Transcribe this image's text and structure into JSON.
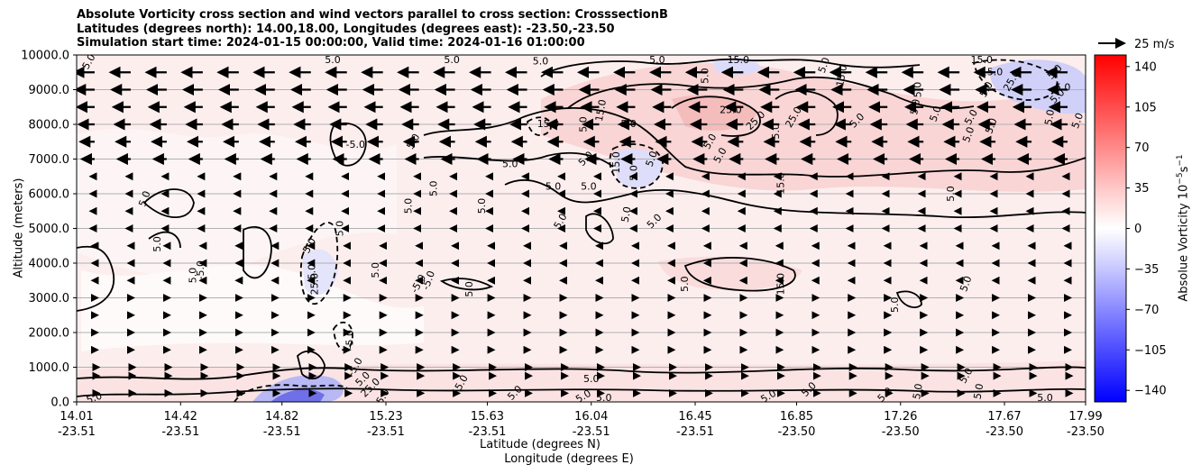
{
  "title": {
    "line1": "Absolute Vorticity cross section and wind vectors parallel to cross section: CrosssectionB",
    "line2": "Latitudes (degrees north): 14.00,18.00, Longitudes (degrees east): -23.50,-23.50",
    "line3": "Simulation start time: 2024-01-15 00:00:00, Valid time: 2024-01-16 01:00:00"
  },
  "quiver_key_label": "25 m/s",
  "colors": {
    "background_pink": "#fdeeee",
    "pink_medium": "#f9d5d5",
    "blue_light": "#e4e4fb",
    "blue_medium": "#b8b8f4",
    "gridline": "#b0b0b0"
  },
  "chart_data": {
    "type": "contour",
    "ylabel": "Altitude (meters)",
    "xlabel_line1": "Latitude (degrees N)",
    "xlabel_line2": "Longitude (degrees E)",
    "ylim": [
      0,
      10000
    ],
    "yticks": [
      "0.0",
      "1000.0",
      "2000.0",
      "3000.0",
      "4000.0",
      "5000.0",
      "6000.0",
      "7000.0",
      "8000.0",
      "9000.0",
      "10000.0"
    ],
    "xlim": [
      14.01,
      17.99
    ],
    "xticks": [
      {
        "lat": 14.01,
        "lat_label": "14.01",
        "lon_label": "-23.51"
      },
      {
        "lat": 14.42,
        "lat_label": "14.42",
        "lon_label": "-23.51"
      },
      {
        "lat": 14.82,
        "lat_label": "14.82",
        "lon_label": "-23.51"
      },
      {
        "lat": 15.23,
        "lat_label": "15.23",
        "lon_label": "-23.51"
      },
      {
        "lat": 15.63,
        "lat_label": "15.63",
        "lon_label": "-23.51"
      },
      {
        "lat": 16.04,
        "lat_label": "16.04",
        "lon_label": "-23.51"
      },
      {
        "lat": 16.45,
        "lat_label": "16.45",
        "lon_label": "-23.51"
      },
      {
        "lat": 16.85,
        "lat_label": "16.85",
        "lon_label": "-23.50"
      },
      {
        "lat": 17.26,
        "lat_label": "17.26",
        "lon_label": "-23.50"
      },
      {
        "lat": 17.67,
        "lat_label": "17.67",
        "lon_label": "-23.50"
      },
      {
        "lat": 17.99,
        "lat_label": "17.99",
        "lon_label": "-23.50"
      }
    ],
    "grid": "horizontal",
    "colorbar": {
      "label": "Absolue Vorticity 10^-5 s^-1",
      "range": [
        -150,
        150
      ],
      "ticks": [
        "140",
        "105",
        "70",
        "35",
        "0",
        "−35",
        "−70",
        "−105",
        "−140"
      ],
      "colormap": "bwr"
    },
    "quiver_key": {
      "speed": 25,
      "units": "m/s"
    },
    "wind_levels_m": [
      250,
      750,
      1000,
      1500,
      2000,
      2500,
      3000,
      3500,
      4000,
      4500,
      5000,
      5500,
      6000,
      6500,
      7000,
      7500,
      8000,
      8500,
      9000,
      9500
    ],
    "contour_labels": [
      {
        "lat": 14.06,
        "alt": 9800,
        "text": "5.0",
        "rot": -60
      },
      {
        "lat": 15.02,
        "alt": 9850,
        "text": "5.0",
        "rot": 0
      },
      {
        "lat": 15.49,
        "alt": 9850,
        "text": "5.0",
        "rot": 0
      },
      {
        "lat": 15.84,
        "alt": 9800,
        "text": "5.0",
        "rot": 0
      },
      {
        "lat": 16.3,
        "alt": 9850,
        "text": "5.0",
        "rot": 0
      },
      {
        "lat": 16.49,
        "alt": 9400,
        "text": "5.0",
        "rot": -90
      },
      {
        "lat": 16.62,
        "alt": 9850,
        "text": "15.0",
        "rot": 0
      },
      {
        "lat": 16.96,
        "alt": 9700,
        "text": "5.0",
        "rot": -70
      },
      {
        "lat": 17.03,
        "alt": 9400,
        "text": "15.0",
        "rot": -80
      },
      {
        "lat": 17.58,
        "alt": 9850,
        "text": "15.0",
        "rot": 0
      },
      {
        "lat": 17.62,
        "alt": 9500,
        "text": "15.0",
        "rot": 0
      },
      {
        "lat": 17.7,
        "alt": 9250,
        "text": "25.0",
        "rot": -60
      },
      {
        "lat": 17.6,
        "alt": 9000,
        "text": "5.0",
        "rot": -60
      },
      {
        "lat": 17.87,
        "alt": 9500,
        "text": "5.0",
        "rot": -45
      },
      {
        "lat": 17.9,
        "alt": 9050,
        "text": "5.0",
        "rot": 0
      },
      {
        "lat": 17.33,
        "alt": 9000,
        "text": "5.0",
        "rot": -90
      },
      {
        "lat": 17.4,
        "alt": 8300,
        "text": "5.0",
        "rot": -70
      },
      {
        "lat": 17.32,
        "alt": 8500,
        "text": "5.0",
        "rot": -80
      },
      {
        "lat": 17.09,
        "alt": 8100,
        "text": "5.0",
        "rot": -45
      },
      {
        "lat": 17.54,
        "alt": 8200,
        "text": "5.0",
        "rot": -60
      },
      {
        "lat": 17.53,
        "alt": 7700,
        "text": "5.0",
        "rot": -70
      },
      {
        "lat": 17.85,
        "alt": 8200,
        "text": "5.0",
        "rot": -80
      },
      {
        "lat": 17.88,
        "alt": 8800,
        "text": "5.0",
        "rot": -45
      },
      {
        "lat": 17.62,
        "alt": 7950,
        "text": "5.0",
        "rot": -70
      },
      {
        "lat": 17.96,
        "alt": 8100,
        "text": "5.0",
        "rot": -70
      },
      {
        "lat": 15.87,
        "alt": 8000,
        "text": "15.0",
        "rot": 0
      },
      {
        "lat": 16.01,
        "alt": 8000,
        "text": "5.0",
        "rot": -90
      },
      {
        "lat": 16.18,
        "alt": 8000,
        "text": "-5.0",
        "rot": 0
      },
      {
        "lat": 16.08,
        "alt": 8400,
        "text": "15.0",
        "rot": -80
      },
      {
        "lat": 16.59,
        "alt": 8400,
        "text": "25.0",
        "rot": 0
      },
      {
        "lat": 16.69,
        "alt": 8100,
        "text": "25.0",
        "rot": -45
      },
      {
        "lat": 16.84,
        "alt": 8200,
        "text": "25.0",
        "rot": -60
      },
      {
        "lat": 16.77,
        "alt": 7800,
        "text": "5.0",
        "rot": -90
      },
      {
        "lat": 16.51,
        "alt": 7500,
        "text": "5.0",
        "rot": -60
      },
      {
        "lat": 16.55,
        "alt": 7100,
        "text": "5.0",
        "rot": -60
      },
      {
        "lat": 16.28,
        "alt": 7000,
        "text": "5.0",
        "rot": -70
      },
      {
        "lat": 16.02,
        "alt": 7000,
        "text": "5.0",
        "rot": -45
      },
      {
        "lat": 16.14,
        "alt": 6900,
        "text": "15.0",
        "rot": -90
      },
      {
        "lat": 16.21,
        "alt": 6600,
        "text": "5.0",
        "rot": -90
      },
      {
        "lat": 16.03,
        "alt": 6200,
        "text": "5.0",
        "rot": 0
      },
      {
        "lat": 15.89,
        "alt": 6200,
        "text": "5.0",
        "rot": 0
      },
      {
        "lat": 15.11,
        "alt": 7400,
        "text": "-5.0",
        "rot": 0
      },
      {
        "lat": 15.34,
        "alt": 7500,
        "text": "5.0",
        "rot": -60
      },
      {
        "lat": 15.72,
        "alt": 6850,
        "text": "5.0",
        "rot": 0
      },
      {
        "lat": 15.42,
        "alt": 6150,
        "text": "5.0",
        "rot": -90
      },
      {
        "lat": 15.61,
        "alt": 5650,
        "text": "5.0",
        "rot": -90
      },
      {
        "lat": 15.92,
        "alt": 5200,
        "text": "5.0",
        "rot": -60
      },
      {
        "lat": 16.18,
        "alt": 5400,
        "text": "5.0",
        "rot": -80
      },
      {
        "lat": 16.29,
        "alt": 5200,
        "text": "5.0",
        "rot": -45
      },
      {
        "lat": 16.79,
        "alt": 6300,
        "text": "15.0",
        "rot": -90
      },
      {
        "lat": 17.46,
        "alt": 6000,
        "text": "5.0",
        "rot": -90
      },
      {
        "lat": 14.28,
        "alt": 5850,
        "text": "5.0",
        "rot": -70
      },
      {
        "lat": 14.33,
        "alt": 4550,
        "text": "5.0",
        "rot": -90
      },
      {
        "lat": 14.93,
        "alt": 4500,
        "text": "5.0",
        "rot": -60
      },
      {
        "lat": 15.05,
        "alt": 5000,
        "text": "5.0",
        "rot": -90
      },
      {
        "lat": 15.32,
        "alt": 5650,
        "text": "5.0",
        "rot": -90
      },
      {
        "lat": 14.5,
        "alt": 3800,
        "text": "-5.0",
        "rot": -90
      },
      {
        "lat": 14.47,
        "alt": 3650,
        "text": "5.0",
        "rot": -90
      },
      {
        "lat": 15.19,
        "alt": 3800,
        "text": "5.0",
        "rot": -90
      },
      {
        "lat": 15.4,
        "alt": 3500,
        "text": "-5.0",
        "rot": -70
      },
      {
        "lat": 15.36,
        "alt": 3400,
        "text": "-5.0",
        "rot": -60
      },
      {
        "lat": 14.95,
        "alt": 3400,
        "text": "25.0",
        "rot": -90
      },
      {
        "lat": 14.94,
        "alt": 3700,
        "text": "-5.0",
        "rot": -90
      },
      {
        "lat": 15.56,
        "alt": 3250,
        "text": "5.0",
        "rot": -90
      },
      {
        "lat": 16.41,
        "alt": 3400,
        "text": "5.0",
        "rot": -90
      },
      {
        "lat": 16.79,
        "alt": 3400,
        "text": "15.0",
        "rot": -90
      },
      {
        "lat": 17.24,
        "alt": 2800,
        "text": "5.0",
        "rot": -90
      },
      {
        "lat": 17.52,
        "alt": 3400,
        "text": "5.0",
        "rot": -70
      },
      {
        "lat": 15.09,
        "alt": 1800,
        "text": "-5.0",
        "rot": -90
      },
      {
        "lat": 15.11,
        "alt": 1000,
        "text": "-5.0",
        "rot": -60
      },
      {
        "lat": 15.14,
        "alt": 650,
        "text": "5.0",
        "rot": -45
      },
      {
        "lat": 15.17,
        "alt": 400,
        "text": "25.0",
        "rot": -45
      },
      {
        "lat": 15.22,
        "alt": 150,
        "text": "5.0",
        "rot": -60
      },
      {
        "lat": 14.08,
        "alt": 100,
        "text": "5.0",
        "rot": -20
      },
      {
        "lat": 15.53,
        "alt": 550,
        "text": "5.0",
        "rot": -60
      },
      {
        "lat": 15.74,
        "alt": 250,
        "text": "5.0",
        "rot": -45
      },
      {
        "lat": 16.01,
        "alt": 150,
        "text": "5.0",
        "rot": -30
      },
      {
        "lat": 16.09,
        "alt": 100,
        "text": "5.0",
        "rot": 0
      },
      {
        "lat": 16.04,
        "alt": 650,
        "text": "5.0",
        "rot": 0
      },
      {
        "lat": 16.74,
        "alt": 150,
        "text": "5.0",
        "rot": -30
      },
      {
        "lat": 16.9,
        "alt": 350,
        "text": "5.0",
        "rot": -45
      },
      {
        "lat": 17.2,
        "alt": 200,
        "text": "5.0",
        "rot": -45
      },
      {
        "lat": 17.33,
        "alt": 300,
        "text": "5.0",
        "rot": -80
      },
      {
        "lat": 17.52,
        "alt": 750,
        "text": "5.0",
        "rot": -60
      },
      {
        "lat": 17.57,
        "alt": 300,
        "text": "5.0",
        "rot": -80
      },
      {
        "lat": 17.83,
        "alt": 100,
        "text": "5.0",
        "rot": 0
      }
    ]
  }
}
